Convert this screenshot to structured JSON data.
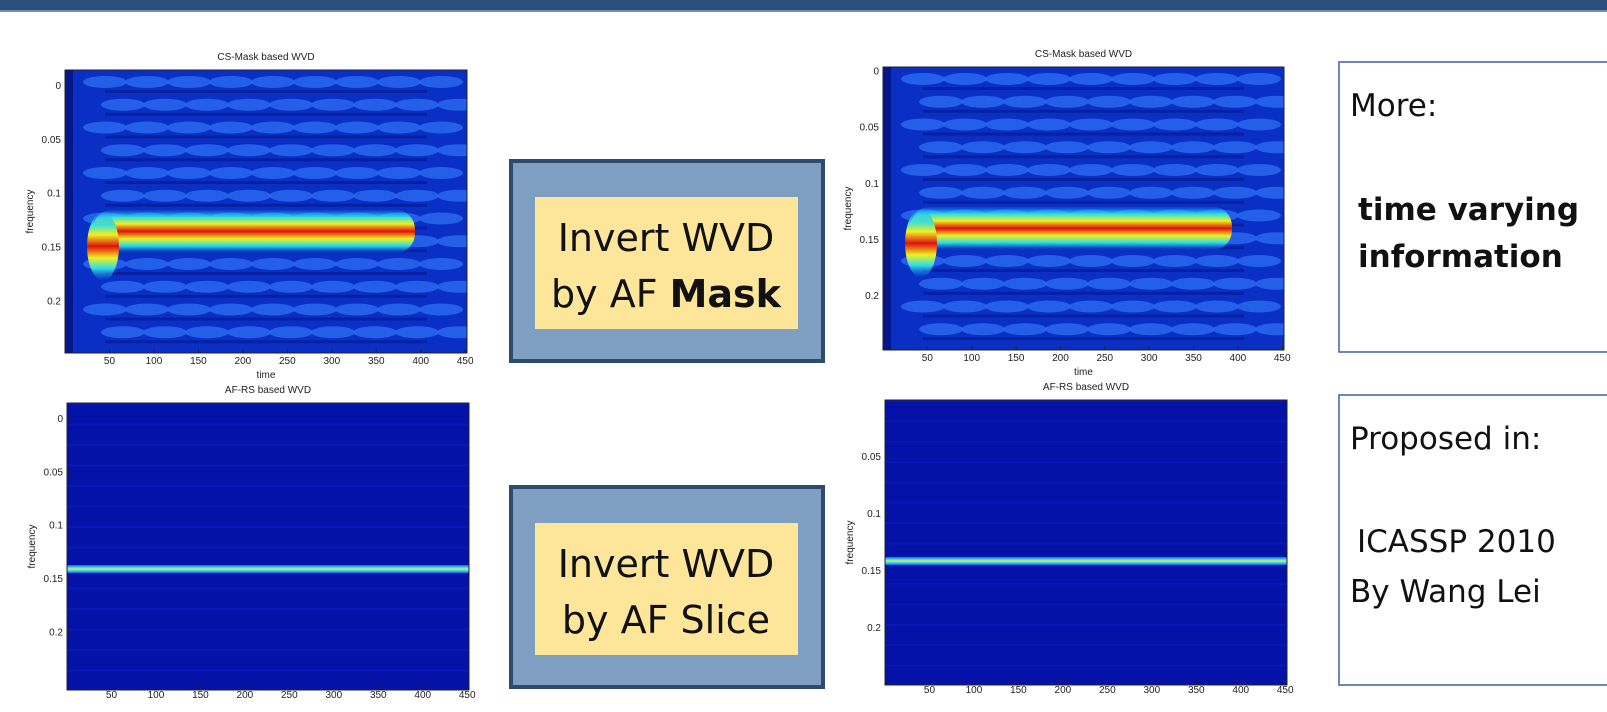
{
  "panels": [
    {
      "title": "CS-Mask based WVD",
      "xlabel": "time",
      "ylabel": "frequency",
      "xlim": [
        0,
        452
      ],
      "ylim": [
        -0.015,
        0.248
      ],
      "xticks": [
        50,
        100,
        150,
        200,
        250,
        300,
        350,
        400,
        450
      ],
      "yticks": [
        0,
        0.05,
        0.1,
        0.15,
        0.2
      ]
    },
    {
      "title": "AF-RS based WVD",
      "ylabel": "frequency",
      "xlim": [
        0,
        452
      ],
      "ylim": [
        -0.015,
        0.254
      ],
      "xticks": [
        50,
        100,
        150,
        200,
        250,
        300,
        350,
        400,
        450
      ],
      "yticks": [
        0,
        0.05,
        0.1,
        0.15,
        0.2
      ]
    },
    {
      "title": "CS-Mask based WVD",
      "xlabel": "time",
      "ylabel": "frequency",
      "xlim": [
        0,
        452
      ],
      "ylim": [
        -0.004,
        0.248
      ],
      "xticks": [
        50,
        100,
        150,
        200,
        250,
        300,
        350,
        400,
        450
      ],
      "yticks": [
        0,
        0.05,
        0.1,
        0.15,
        0.2
      ]
    },
    {
      "title": "AF-RS based WVD",
      "ylabel": "frequency",
      "xlim": [
        0,
        452
      ],
      "ylim": [
        0,
        0.25
      ],
      "xticks": [
        50,
        100,
        150,
        200,
        250,
        300,
        350,
        400,
        450
      ],
      "yticks": [
        0.05,
        0.1,
        0.15,
        0.2
      ]
    }
  ],
  "boxes": [
    {
      "line1": "Invert WVD",
      "line2": "by AF",
      "emphasis": "Mask"
    },
    {
      "line1": "Invert WVD",
      "line2": "by AF Slice"
    }
  ],
  "notes": [
    {
      "heading": "More:",
      "body": [
        "time varying",
        "information"
      ],
      "bold": true
    },
    {
      "heading": "Proposed in:",
      "body": [
        "ICASSP 2010",
        "By Wang Lei"
      ],
      "bold": false
    }
  ]
}
